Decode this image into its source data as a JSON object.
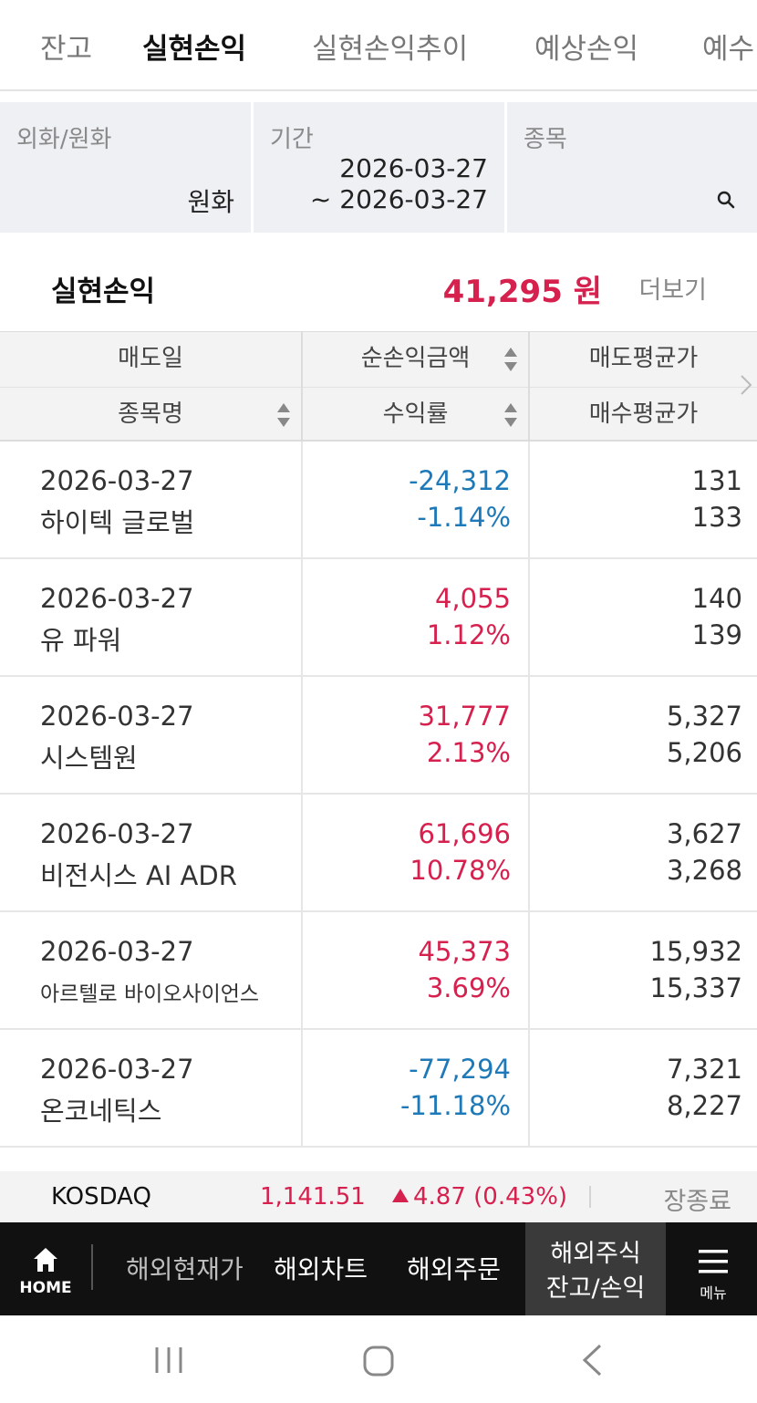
{
  "tabs": [
    {
      "label": "잔고",
      "active": false
    },
    {
      "label": "실현손익",
      "active": true
    },
    {
      "label": "실현손익추이",
      "active": false
    },
    {
      "label": "예상손익",
      "active": false
    },
    {
      "label": "예수",
      "active": false
    }
  ],
  "filters": {
    "currency_label": "외화/원화",
    "currency_value": "원화",
    "period_label": "기간",
    "period_start": "2026-03-27",
    "period_end": "~ 2026-03-27",
    "stock_label": "종목"
  },
  "summary": {
    "label": "실현손익",
    "value": "41,295 원",
    "more": "더보기"
  },
  "table": {
    "headers": {
      "sell_date": "매도일",
      "net_profit": "순손익금액",
      "sell_avg": "매도평균가",
      "stock_name": "종목명",
      "return_rate": "수익률",
      "buy_avg": "매수평균가"
    },
    "rows": [
      {
        "date": "2026-03-27",
        "name": "하이텍 글로벌",
        "amount": "-24,312",
        "rate": "-1.14%",
        "sell": "131",
        "buy": "133",
        "sign": "neg"
      },
      {
        "date": "2026-03-27",
        "name": "유 파워",
        "amount": "4,055",
        "rate": "1.12%",
        "sell": "140",
        "buy": "139",
        "sign": "pos"
      },
      {
        "date": "2026-03-27",
        "name": "시스템원",
        "amount": "31,777",
        "rate": "2.13%",
        "sell": "5,327",
        "buy": "5,206",
        "sign": "pos"
      },
      {
        "date": "2026-03-27",
        "name": "비전시스 AI ADR",
        "amount": "61,696",
        "rate": "10.78%",
        "sell": "3,627",
        "buy": "3,268",
        "sign": "pos"
      },
      {
        "date": "2026-03-27",
        "name": "아르텔로 바이오사이언스",
        "amount": "45,373",
        "rate": "3.69%",
        "sell": "15,932",
        "buy": "15,337",
        "sign": "pos"
      },
      {
        "date": "2026-03-27",
        "name": "온코네틱스",
        "amount": "-77,294",
        "rate": "-11.18%",
        "sell": "7,321",
        "buy": "8,227",
        "sign": "neg"
      }
    ]
  },
  "ticker": {
    "name": "KOSDAQ",
    "value": "1,141.51",
    "change": "4.87 (0.43%)",
    "status": "장종료"
  },
  "bottom_nav": {
    "home": "HOME",
    "items": [
      "해외현재가",
      "해외차트",
      "해외주문"
    ],
    "active_line1": "해외주식",
    "active_line2": "잔고/손익",
    "menu": "메뉴"
  },
  "colors": {
    "positive": "#d6204e",
    "negative": "#1e79b8",
    "nav_bg": "#111111"
  }
}
